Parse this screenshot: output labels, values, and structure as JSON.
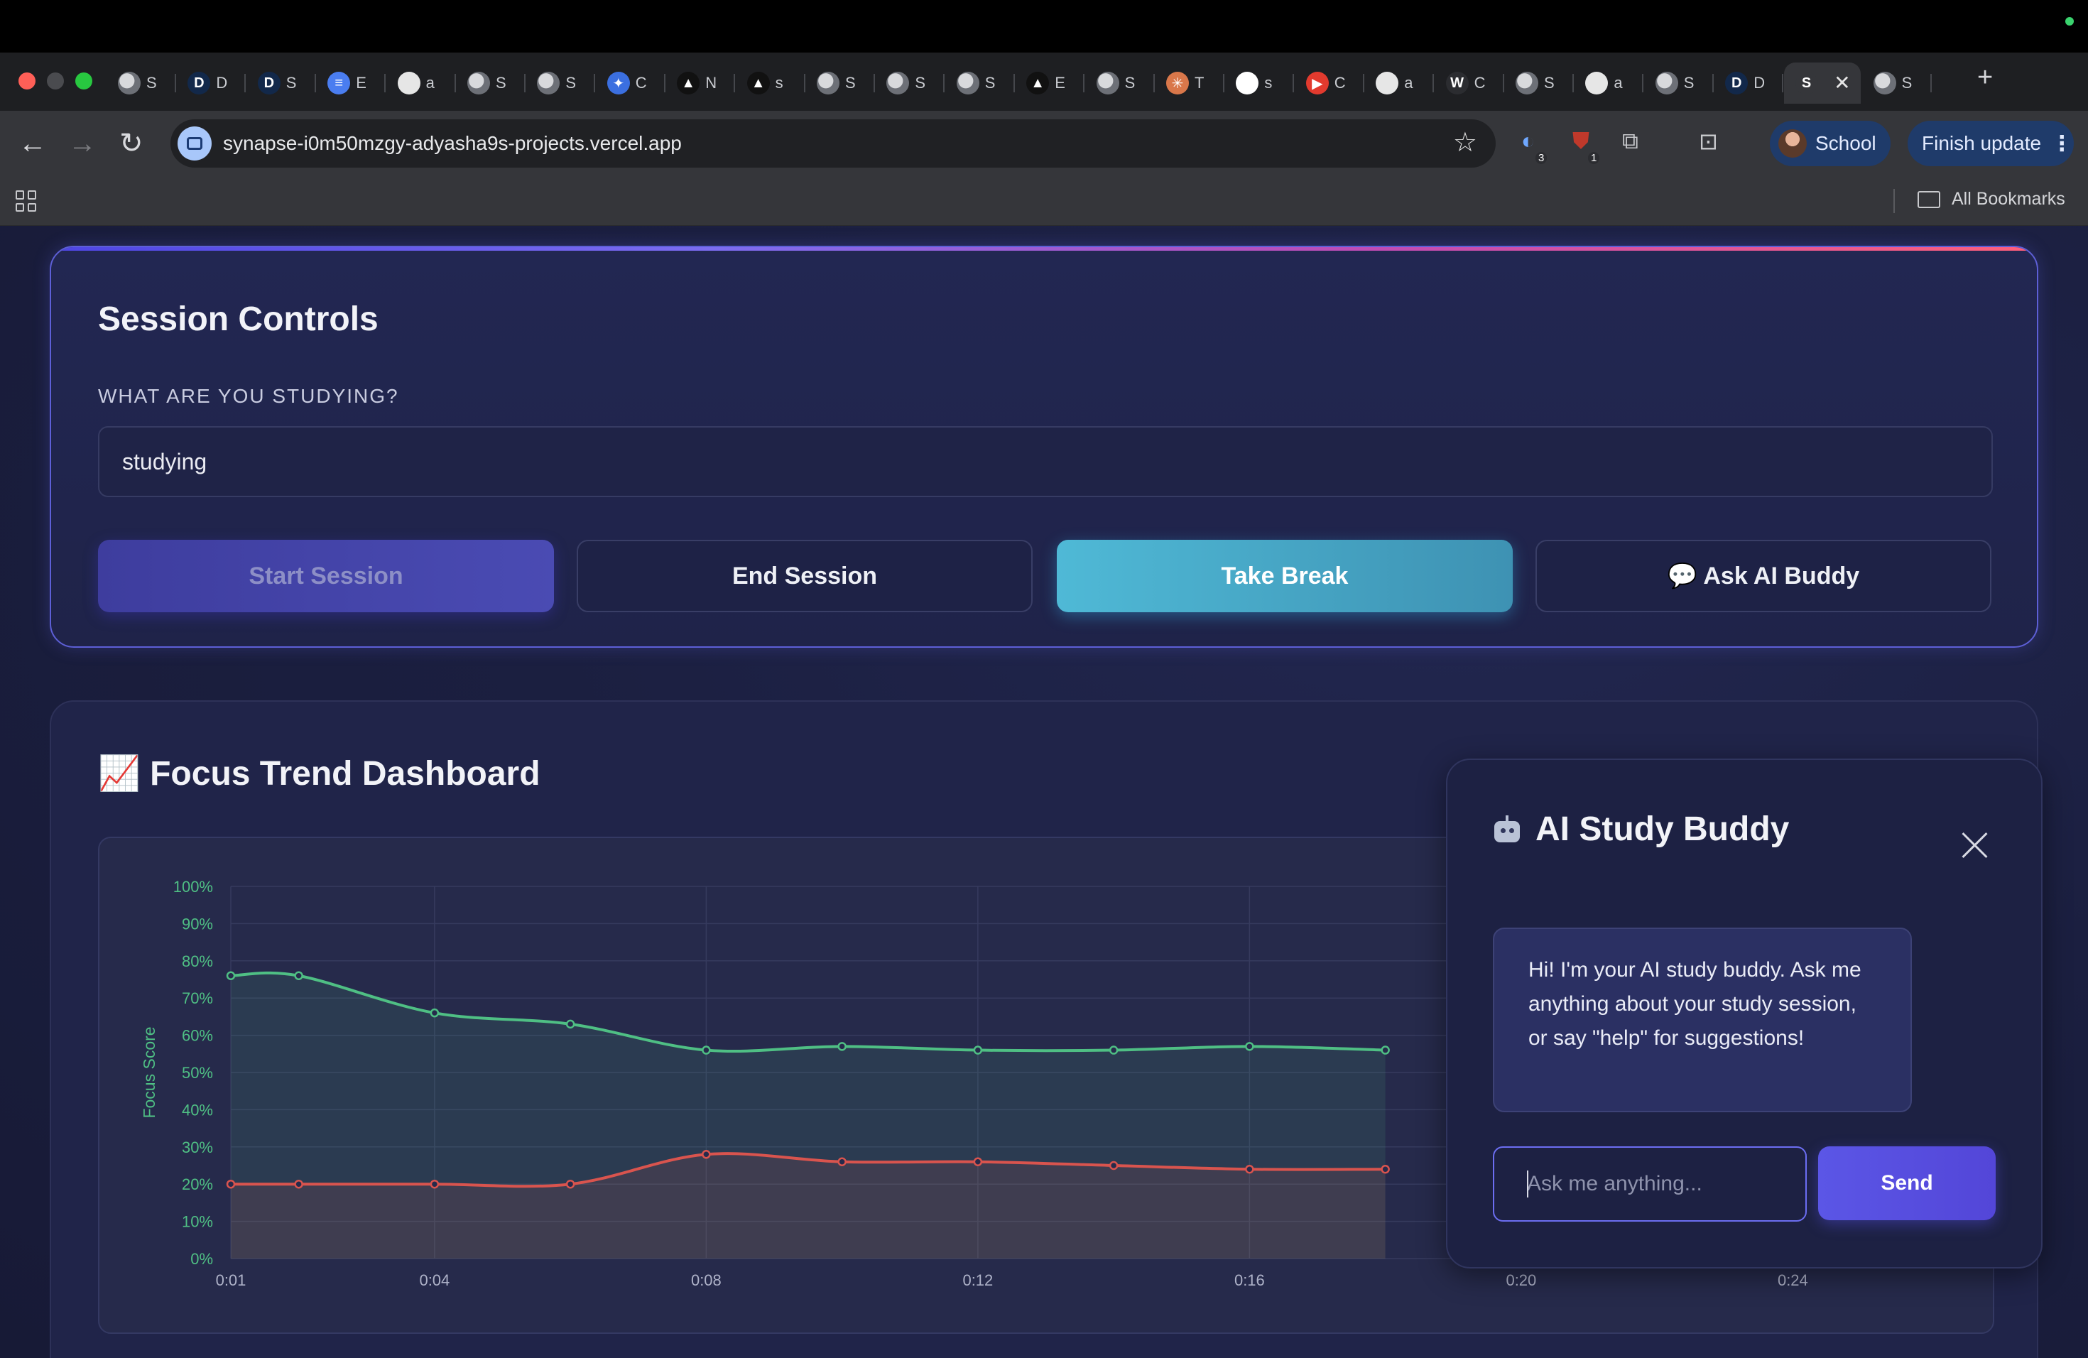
{
  "browser": {
    "tabs": [
      {
        "icon": "globe-icon",
        "letter": "",
        "title": "S",
        "color": "#6d7077"
      },
      {
        "icon": "d-logo-icon",
        "letter": "D",
        "title": "D",
        "color": "#12284a"
      },
      {
        "icon": "d-logo-icon",
        "letter": "D",
        "title": "S",
        "color": "#12284a"
      },
      {
        "icon": "docs-icon",
        "letter": "≡",
        "title": "E",
        "color": "#4a7df0"
      },
      {
        "icon": "github-icon",
        "letter": "",
        "title": "a",
        "color": "#e6e6e6"
      },
      {
        "icon": "globe-icon",
        "letter": "",
        "title": "S",
        "color": "#6d7077"
      },
      {
        "icon": "globe-icon",
        "letter": "",
        "title": "S",
        "color": "#6d7077"
      },
      {
        "icon": "gemini-icon",
        "letter": "✦",
        "title": "C",
        "color": "#3b6fe0"
      },
      {
        "icon": "triangle-icon",
        "letter": "▲",
        "title": "N",
        "color": "#111"
      },
      {
        "icon": "triangle-icon",
        "letter": "▲",
        "title": "s",
        "color": "#111"
      },
      {
        "icon": "globe-icon",
        "letter": "",
        "title": "S",
        "color": "#6d7077"
      },
      {
        "icon": "globe-icon",
        "letter": "",
        "title": "S",
        "color": "#6d7077"
      },
      {
        "icon": "globe-icon",
        "letter": "",
        "title": "S",
        "color": "#6d7077"
      },
      {
        "icon": "triangle-icon",
        "letter": "▲",
        "title": "E",
        "color": "#111"
      },
      {
        "icon": "globe-icon",
        "letter": "",
        "title": "S",
        "color": "#6d7077"
      },
      {
        "icon": "claude-icon",
        "letter": "✳",
        "title": "T",
        "color": "#d9774a"
      },
      {
        "icon": "google-icon",
        "letter": "G",
        "title": "s",
        "color": "#ffffff"
      },
      {
        "icon": "youtube-icon",
        "letter": "▶",
        "title": "C",
        "color": "#e23a2e"
      },
      {
        "icon": "github-icon",
        "letter": "",
        "title": "a",
        "color": "#e6e6e6"
      },
      {
        "icon": "wiki-icon",
        "letter": "W",
        "title": "C",
        "color": "#2b2c30"
      },
      {
        "icon": "globe-icon",
        "letter": "",
        "title": "S",
        "color": "#6d7077"
      },
      {
        "icon": "github-icon",
        "letter": "",
        "title": "a",
        "color": "#e6e6e6"
      },
      {
        "icon": "globe-icon",
        "letter": "",
        "title": "S",
        "color": "#6d7077"
      },
      {
        "icon": "d-logo-icon",
        "letter": "D",
        "title": "D",
        "color": "#12284a"
      },
      {
        "icon": "s-tab-icon",
        "letter": "S",
        "title": "",
        "color": "#35363a",
        "active": true
      },
      {
        "icon": "globe-icon",
        "letter": "",
        "title": "S",
        "color": "#6d7077"
      }
    ],
    "url": "synapse-i0m50mzgy-adyasha9s-projects.vercel.app",
    "extension_badges": [
      "3",
      "1"
    ],
    "profile_label": "School",
    "update_label": "Finish update",
    "bookmarks_label": "All Bookmarks"
  },
  "session_controls": {
    "title": "Session Controls",
    "field_label": "WHAT ARE YOU STUDYING?",
    "field_value": "studying",
    "buttons": {
      "start": "Start Session",
      "end": "End Session",
      "break": "Take Break",
      "ask": "💬 Ask AI Buddy"
    }
  },
  "dashboard": {
    "title": "📈 Focus Trend Dashboard"
  },
  "chart_data": {
    "type": "line",
    "ylabel": "Focus Score",
    "ylim": [
      0,
      100
    ],
    "yticks": [
      "0%",
      "10%",
      "20%",
      "30%",
      "40%",
      "50%",
      "60%",
      "70%",
      "80%",
      "90%",
      "100%"
    ],
    "xticks": [
      "0:01",
      "0:04",
      "0:08",
      "0:12",
      "0:16",
      "0:20",
      "0:24"
    ],
    "grid": true,
    "series": [
      {
        "name": "",
        "color": "#4fbf84",
        "fill": true,
        "x": [
          "0:01",
          "0:02",
          "0:04",
          "0:06",
          "0:08",
          "0:10",
          "0:12",
          "0:14",
          "0:16",
          "0:18"
        ],
        "values": [
          76,
          76,
          66,
          63,
          56,
          57,
          56,
          56,
          57,
          56
        ]
      },
      {
        "name": "",
        "color": "#d9544e",
        "fill": true,
        "x": [
          "0:01",
          "0:02",
          "0:04",
          "0:06",
          "0:08",
          "0:10",
          "0:12",
          "0:14",
          "0:16",
          "0:18"
        ],
        "values": [
          20,
          20,
          20,
          20,
          28,
          26,
          26,
          25,
          24,
          24
        ]
      }
    ]
  },
  "ai_buddy": {
    "title": "AI Study Buddy",
    "message": "Hi! I'm your AI study buddy. Ask me anything about your study session, or say \"help\" for suggestions!",
    "input_placeholder": "Ask me anything...",
    "send_label": "Send"
  }
}
